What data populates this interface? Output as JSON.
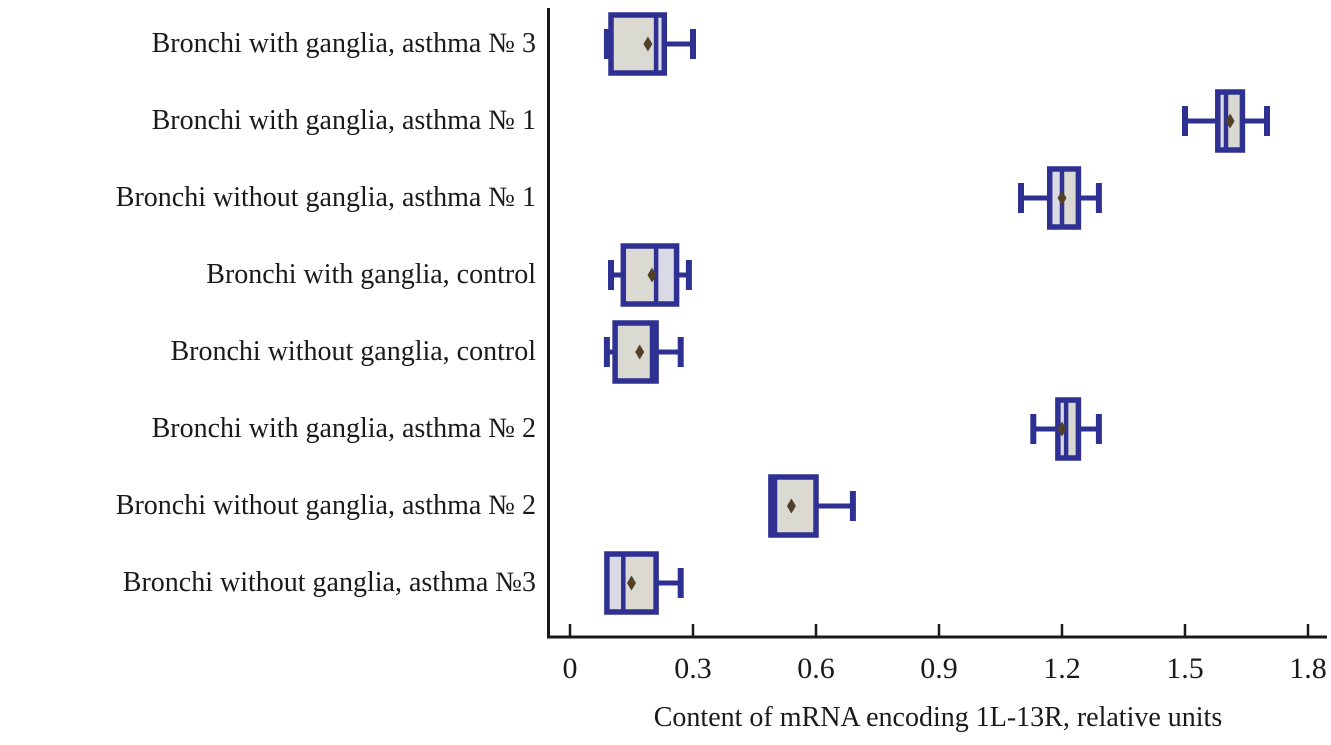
{
  "chart_data": {
    "type": "boxplot",
    "orientation": "horizontal",
    "title": "",
    "xlabel": "Content of mRNA encoding 1L-13R, relative units",
    "ylabel": "",
    "xlim": [
      0,
      1.8
    ],
    "xticks": [
      0,
      0.3,
      0.6,
      0.9,
      1.2,
      1.5,
      1.8
    ],
    "xtick_labels": [
      "0",
      "0.3",
      "0.6",
      "0.9",
      "1.2",
      "1.5",
      "1.8"
    ],
    "grid": false,
    "legend": false,
    "categories": [
      "Bronchi with ganglia, asthma № 3",
      "Bronchi with ganglia, asthma № 1",
      "Bronchi without ganglia, asthma № 1",
      "Bronchi with ganglia, control",
      "Bronchi without ganglia, control",
      "Bronchi with ganglia, asthma № 2",
      "Bronchi without ganglia, asthma № 2",
      "Bronchi without ganglia, asthma №3"
    ],
    "boxes": [
      {
        "whisker_low": 0.09,
        "q1": 0.1,
        "median": 0.21,
        "q3": 0.23,
        "whisker_high": 0.3,
        "mean": 0.19
      },
      {
        "whisker_low": 1.5,
        "q1": 1.58,
        "median": 1.6,
        "q3": 1.64,
        "whisker_high": 1.7,
        "mean": 1.61
      },
      {
        "whisker_low": 1.1,
        "q1": 1.17,
        "median": 1.2,
        "q3": 1.24,
        "whisker_high": 1.29,
        "mean": 1.2
      },
      {
        "whisker_low": 0.1,
        "q1": 0.13,
        "median": 0.21,
        "q3": 0.26,
        "whisker_high": 0.29,
        "mean": 0.2
      },
      {
        "whisker_low": 0.09,
        "q1": 0.11,
        "median": 0.2,
        "q3": 0.21,
        "whisker_high": 0.27,
        "mean": 0.17
      },
      {
        "whisker_low": 1.13,
        "q1": 1.19,
        "median": 1.21,
        "q3": 1.24,
        "whisker_high": 1.29,
        "mean": 1.2
      },
      {
        "whisker_low": 0.49,
        "q1": 0.49,
        "median": 0.5,
        "q3": 0.6,
        "whisker_high": 0.69,
        "mean": 0.54
      },
      {
        "whisker_low": 0.09,
        "q1": 0.09,
        "median": 0.13,
        "q3": 0.21,
        "whisker_high": 0.27,
        "mean": 0.15
      }
    ],
    "colors": {
      "box_border": "#2e3192",
      "box_fill": "#dbdad2",
      "box_fill_light": "#dadae6",
      "mean_marker": "#52402a",
      "axis": "#1a1a1a",
      "text": "#1a1a1a"
    }
  }
}
